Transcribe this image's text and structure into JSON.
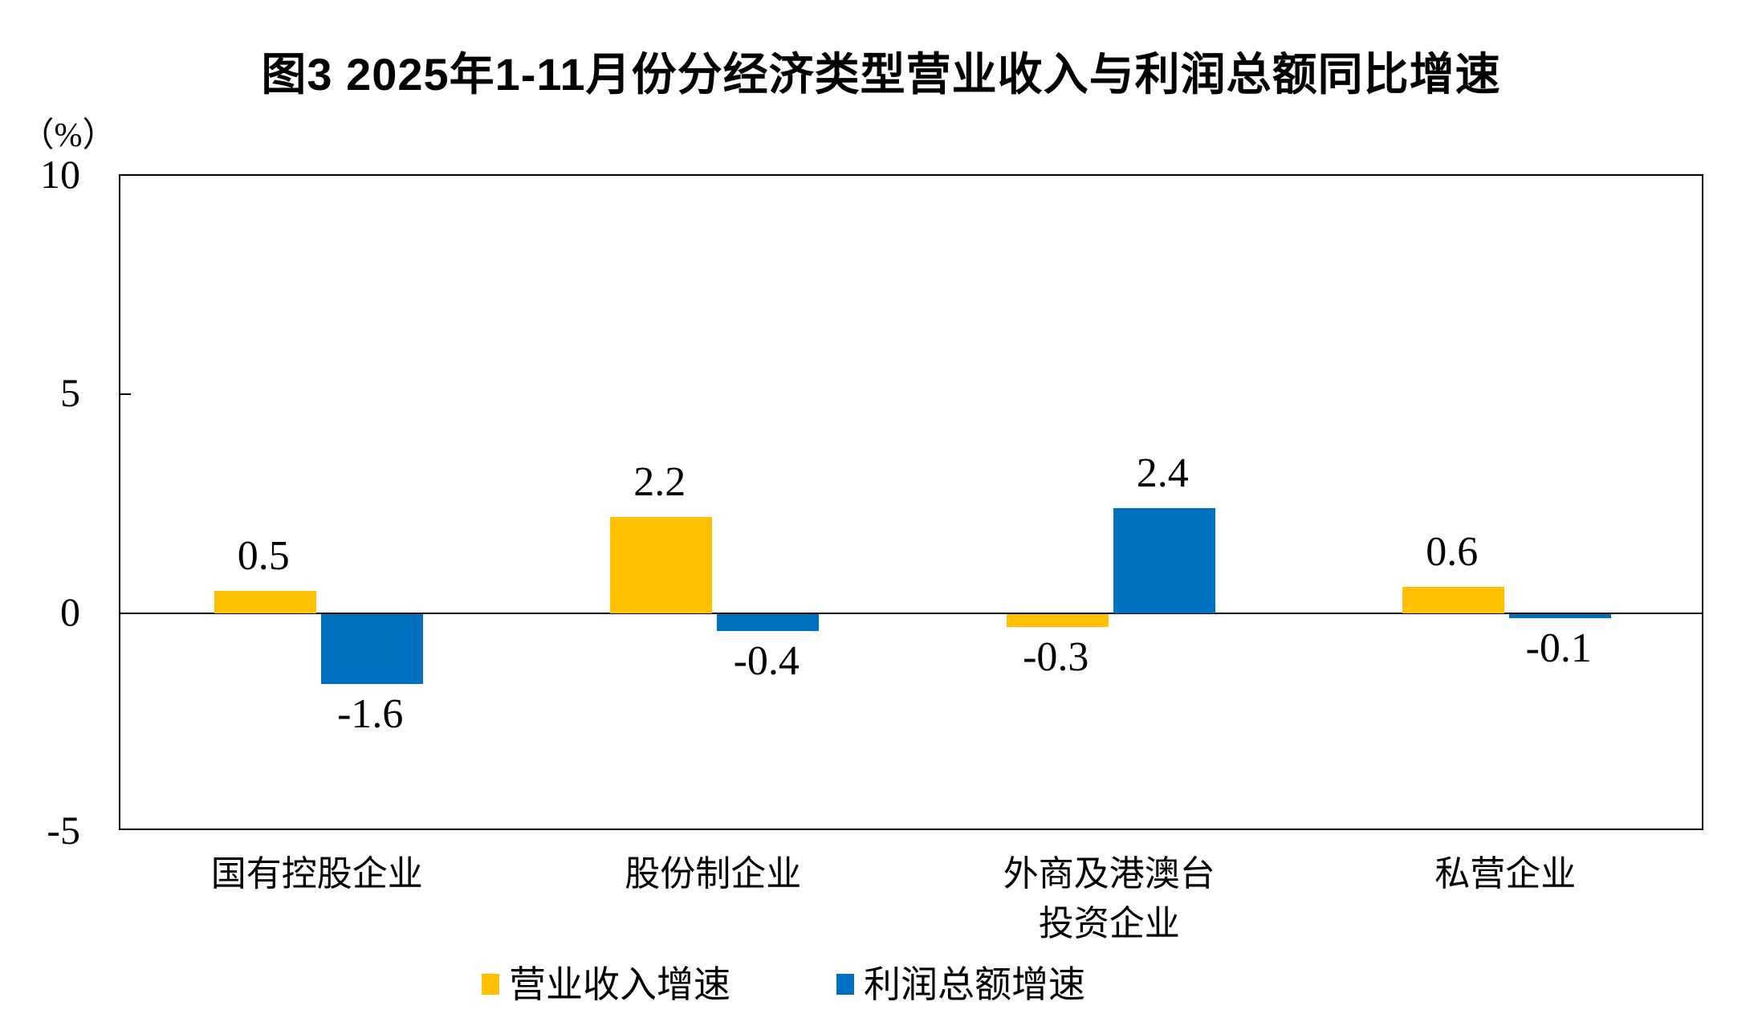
{
  "title": "图3 2025年1-11月份分经济类型营业收入与利润总额同比增速",
  "y_axis": {
    "unit_label": "（%）",
    "ticks": [
      10,
      5,
      0,
      -5
    ]
  },
  "colors": {
    "revenue_bar": "#FFC000",
    "profit_bar": "#0070C0",
    "axis": "#000000",
    "text": "#000000",
    "background": "#FFFFFF"
  },
  "chart_data": {
    "type": "bar",
    "title": "图3 2025年1-11月份分经济类型营业收入与利润总额同比增速",
    "xlabel": "",
    "ylabel": "（%）",
    "ylim": [
      -5,
      10
    ],
    "yticks": [
      10,
      5,
      0,
      -5
    ],
    "grid": false,
    "legend_position": "bottom",
    "categories": [
      "国有控股企业",
      "股份制企业",
      "外商及港澳台投资企业",
      "私营企业"
    ],
    "category_label_lines": [
      [
        "国有控股企业"
      ],
      [
        "股份制企业"
      ],
      [
        "外商及港澳台",
        "投资企业"
      ],
      [
        "私营企业"
      ]
    ],
    "series": [
      {
        "name": "营业收入增速",
        "color": "#FFC000",
        "values": [
          0.5,
          2.2,
          -0.3,
          0.6
        ]
      },
      {
        "name": "利润总额增速",
        "color": "#0070C0",
        "values": [
          -1.6,
          -0.4,
          2.4,
          -0.1
        ]
      }
    ]
  }
}
